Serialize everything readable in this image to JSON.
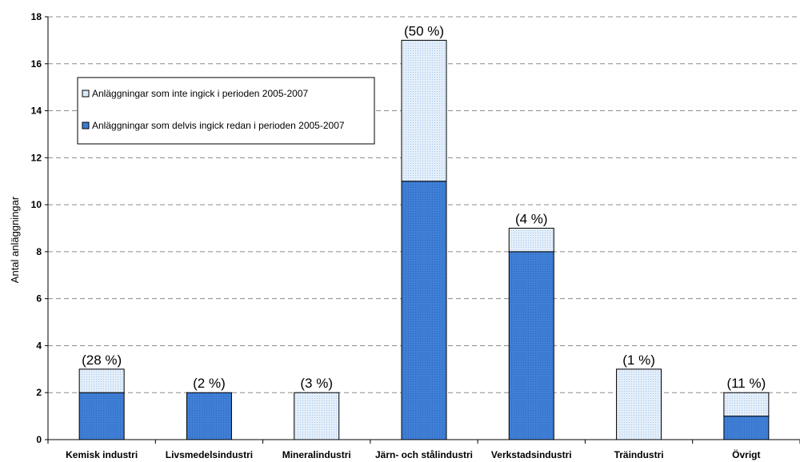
{
  "chart_data": {
    "type": "bar",
    "stacked": true,
    "ylabel": "Antal anläggningar",
    "ylim": [
      0,
      18
    ],
    "ytick_step": 2,
    "grid": "horizontal-dashed",
    "legend_placement": "top-left",
    "categories": [
      "Kemisk industri",
      "Livsmedelsindustri",
      "Mineralindustri",
      "Järn- och stålindustri",
      "Verkstadsindustri",
      "Träindustri",
      "Övrigt"
    ],
    "percent_labels": [
      "(28 %)",
      "(2 %)",
      "(3 %)",
      "(50 %)",
      "(4 %)",
      "(1 %)",
      "(11 %)"
    ],
    "series": [
      {
        "name": "Anläggningar som delvis ingick redan i perioden 2005-2007",
        "color": "#3f7fd6",
        "values": [
          2,
          2,
          0,
          11,
          8,
          0,
          1
        ]
      },
      {
        "name": "Anläggningar som inte ingick i perioden 2005-2007",
        "color": "#d3e4f7",
        "values": [
          1,
          0,
          2,
          6,
          1,
          3,
          1
        ]
      }
    ],
    "legend_order": [
      1,
      0
    ]
  }
}
